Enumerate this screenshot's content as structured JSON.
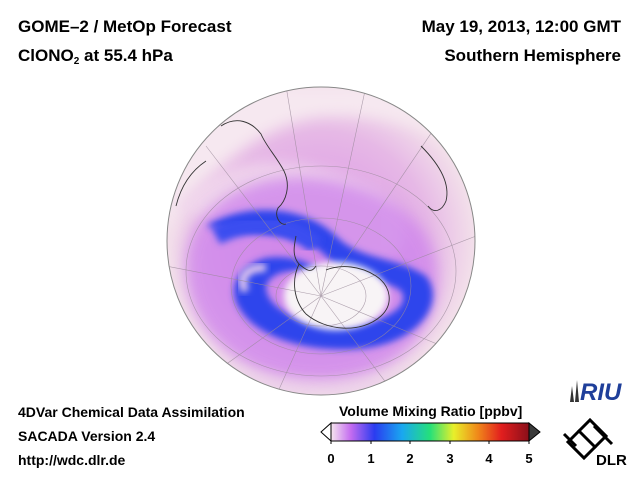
{
  "header": {
    "product": "GOME–2 / MetOp Forecast",
    "species_main": "ClONO",
    "species_sub": "2",
    "species_rest": " at 55.4 hPa",
    "datetime": "May 19, 2013, 12:00 GMT",
    "region": "Southern Hemisphere"
  },
  "footer": {
    "line1": "4DVar Chemical Data Assimilation",
    "line2": "SACADA Version 2.4",
    "line3": "http://wdc.dlr.de"
  },
  "colorbar": {
    "title": "Volume Mixing Ratio [ppbv]",
    "ticks": [
      "0",
      "1",
      "2",
      "3",
      "4",
      "5"
    ],
    "colors": [
      "#f5e6ee",
      "#c46cf0",
      "#2a3cf0",
      "#19a8f0",
      "#25e07a",
      "#e8ef2a",
      "#f08a1a",
      "#e21e1e",
      "#8a0f1a"
    ]
  },
  "logos": {
    "riu": "RIU",
    "dlr": "DLR"
  },
  "map": {
    "projection": "orthographic",
    "hemisphere": "south",
    "colors": {
      "background": "#f3e1ea",
      "low": "#f8eef2",
      "mid": "#c97ae8",
      "high": "#2a3bea",
      "vortex_core": "#f8f4f6"
    }
  }
}
